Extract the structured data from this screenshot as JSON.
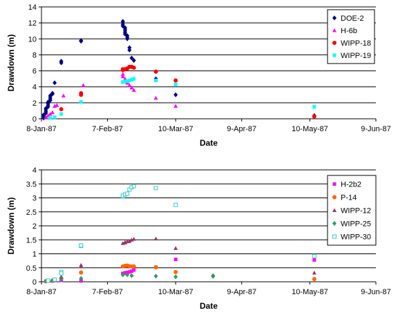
{
  "chart_data": [
    {
      "type": "scatter",
      "xlabel": "Date",
      "ylabel": "Drawdown (m)",
      "xlim": [
        "1987-01-08",
        "1987-06-09"
      ],
      "ylim": [
        0,
        14
      ],
      "yticks": [
        0,
        2,
        4,
        6,
        8,
        10,
        12,
        14
      ],
      "ytick_labels": [
        "0",
        "2",
        "4",
        "6",
        "8",
        "10",
        "12",
        "14"
      ],
      "xticks": [
        "1987-01-08",
        "1987-02-07",
        "1987-03-10",
        "1987-04-09",
        "1987-05-10",
        "1987-06-09"
      ],
      "xtick_labels": [
        "8-Jan-87",
        "7-Feb-87",
        "10-Mar-87",
        "9-Apr-87",
        "10-May-87",
        "9-Jun-87"
      ],
      "grid": "horizontal",
      "legend_position": "top-right",
      "series": [
        {
          "name": "DOE-2",
          "color": "#000080",
          "marker": "diamond",
          "points": [
            [
              "1987-01-09",
              0.1
            ],
            [
              "1987-01-09",
              0.3
            ],
            [
              "1987-01-09",
              0.5
            ],
            [
              "1987-01-10",
              0.7
            ],
            [
              "1987-01-10",
              0.9
            ],
            [
              "1987-01-10",
              1.1
            ],
            [
              "1987-01-10",
              1.3
            ],
            [
              "1987-01-11",
              1.5
            ],
            [
              "1987-01-11",
              1.7
            ],
            [
              "1987-01-11",
              1.9
            ],
            [
              "1987-01-11",
              2.1
            ],
            [
              "1987-01-12",
              2.3
            ],
            [
              "1987-01-12",
              2.5
            ],
            [
              "1987-01-12",
              2.7
            ],
            [
              "1987-01-12",
              2.9
            ],
            [
              "1987-01-13",
              3.1
            ],
            [
              "1987-01-13",
              3.2
            ],
            [
              "1987-01-14",
              4.5
            ],
            [
              "1987-01-17",
              7.0
            ],
            [
              "1987-01-17",
              7.2
            ],
            [
              "1987-01-26",
              9.7
            ],
            [
              "1987-01-26",
              9.8
            ],
            [
              "1987-02-14",
              12.2
            ],
            [
              "1987-02-14",
              12.0
            ],
            [
              "1987-02-14",
              11.8
            ],
            [
              "1987-02-14",
              11.6
            ],
            [
              "1987-02-15",
              11.4
            ],
            [
              "1987-02-15",
              11.2
            ],
            [
              "1987-02-15",
              11.0
            ],
            [
              "1987-02-15",
              10.8
            ],
            [
              "1987-02-15",
              10.6
            ],
            [
              "1987-02-16",
              10.4
            ],
            [
              "1987-02-16",
              10.2
            ],
            [
              "1987-02-16",
              10.0
            ],
            [
              "1987-02-17",
              8.9
            ],
            [
              "1987-02-17",
              8.6
            ],
            [
              "1987-02-18",
              7.6
            ],
            [
              "1987-02-19",
              7.3
            ],
            [
              "1987-03-01",
              5.0
            ],
            [
              "1987-03-10",
              3.0
            ],
            [
              "1987-05-12",
              0.4
            ]
          ]
        },
        {
          "name": "H-6b",
          "color": "#FF00FF",
          "marker": "triangle",
          "points": [
            [
              "1987-01-10",
              0.2
            ],
            [
              "1987-01-11",
              0.4
            ],
            [
              "1987-01-12",
              0.6
            ],
            [
              "1987-01-13",
              0.8
            ],
            [
              "1987-01-14",
              1.6
            ],
            [
              "1987-01-15",
              1.7
            ],
            [
              "1987-01-18",
              2.9
            ],
            [
              "1987-01-27",
              4.2
            ],
            [
              "1987-02-14",
              5.6
            ],
            [
              "1987-02-14",
              5.3
            ],
            [
              "1987-02-15",
              5.0
            ],
            [
              "1987-02-15",
              4.8
            ],
            [
              "1987-02-16",
              4.6
            ],
            [
              "1987-02-16",
              4.5
            ],
            [
              "1987-02-17",
              4.2
            ],
            [
              "1987-02-18",
              3.9
            ],
            [
              "1987-02-19",
              3.6
            ],
            [
              "1987-03-01",
              2.6
            ],
            [
              "1987-03-10",
              1.6
            ],
            [
              "1987-05-12",
              0.3
            ]
          ]
        },
        {
          "name": "WIPP-18",
          "color": "#FF0000",
          "marker": "circle",
          "points": [
            [
              "1987-01-17",
              1.2
            ],
            [
              "1987-01-26",
              3.2
            ],
            [
              "1987-01-26",
              3.0
            ],
            [
              "1987-02-14",
              6.1
            ],
            [
              "1987-02-14",
              6.2
            ],
            [
              "1987-02-15",
              6.2
            ],
            [
              "1987-02-16",
              6.3
            ],
            [
              "1987-02-17",
              6.5
            ],
            [
              "1987-02-18",
              6.5
            ],
            [
              "1987-02-19",
              6.4
            ],
            [
              "1987-03-01",
              5.9
            ],
            [
              "1987-03-10",
              4.8
            ],
            [
              "1987-05-12",
              0.3
            ]
          ]
        },
        {
          "name": "WIPP-19",
          "color": "#00FFFF",
          "marker": "square",
          "points": [
            [
              "1987-01-12",
              0.1
            ],
            [
              "1987-01-14",
              0.2
            ],
            [
              "1987-01-17",
              0.6
            ],
            [
              "1987-01-26",
              2.1
            ],
            [
              "1987-02-14",
              4.6
            ],
            [
              "1987-02-15",
              4.7
            ],
            [
              "1987-02-16",
              4.7
            ],
            [
              "1987-02-17",
              4.8
            ],
            [
              "1987-02-18",
              4.9
            ],
            [
              "1987-02-19",
              5.0
            ],
            [
              "1987-03-01",
              4.8
            ],
            [
              "1987-03-10",
              4.3
            ],
            [
              "1987-05-12",
              1.5
            ]
          ]
        }
      ]
    },
    {
      "type": "scatter",
      "xlabel": "Date",
      "ylabel": "Drawdown (m)",
      "xlim": [
        "1987-01-08",
        "1987-06-09"
      ],
      "ylim": [
        0,
        4
      ],
      "yticks": [
        0,
        0.5,
        1,
        1.5,
        2,
        2.5,
        3,
        3.5,
        4
      ],
      "ytick_labels": [
        "0",
        "0.5",
        "1",
        "1.5",
        "2",
        "2.5",
        "3",
        "3.5",
        "4"
      ],
      "xticks": [
        "1987-01-08",
        "1987-02-07",
        "1987-03-10",
        "1987-04-09",
        "1987-05-10",
        "1987-06-09"
      ],
      "xtick_labels": [
        "8-Jan-87",
        "7-Feb-87",
        "10-Mar-87",
        "9-Apr-87",
        "10-May-87",
        "9-Jun-87"
      ],
      "grid": "horizontal",
      "legend_position": "right",
      "series": [
        {
          "name": "H-2b2",
          "color": "#FF00FF",
          "marker": "square",
          "points": [
            [
              "1987-01-10",
              0.02
            ],
            [
              "1987-01-13",
              0.03
            ],
            [
              "1987-01-17",
              0.05
            ],
            [
              "1987-01-26",
              0.03
            ],
            [
              "1987-02-14",
              0.28
            ],
            [
              "1987-02-14",
              0.3
            ],
            [
              "1987-02-15",
              0.31
            ],
            [
              "1987-02-15",
              0.32
            ],
            [
              "1987-02-16",
              0.33
            ],
            [
              "1987-02-17",
              0.35
            ],
            [
              "1987-02-18",
              0.38
            ],
            [
              "1987-02-19",
              0.42
            ],
            [
              "1987-03-01",
              0.52
            ],
            [
              "1987-03-10",
              0.8
            ],
            [
              "1987-05-12",
              0.78
            ]
          ]
        },
        {
          "name": "P-14",
          "color": "#FF6600",
          "marker": "circle",
          "points": [
            [
              "1987-01-10",
              0.02
            ],
            [
              "1987-01-13",
              0.04
            ],
            [
              "1987-01-17",
              0.12
            ],
            [
              "1987-01-26",
              0.33
            ],
            [
              "1987-02-14",
              0.55
            ],
            [
              "1987-02-15",
              0.57
            ],
            [
              "1987-02-16",
              0.58
            ],
            [
              "1987-02-17",
              0.56
            ],
            [
              "1987-02-18",
              0.55
            ],
            [
              "1987-02-19",
              0.55
            ],
            [
              "1987-03-01",
              0.52
            ],
            [
              "1987-03-10",
              0.35
            ],
            [
              "1987-05-12",
              0.1
            ]
          ]
        },
        {
          "name": "WIPP-12",
          "color": "#993366",
          "marker": "triangle",
          "points": [
            [
              "1987-01-11",
              0.03
            ],
            [
              "1987-01-14",
              0.05
            ],
            [
              "1987-01-17",
              0.18
            ],
            [
              "1987-01-26",
              0.6
            ],
            [
              "1987-01-26",
              0.55
            ],
            [
              "1987-02-14",
              1.38
            ],
            [
              "1987-02-15",
              1.4
            ],
            [
              "1987-02-15",
              1.42
            ],
            [
              "1987-02-16",
              1.44
            ],
            [
              "1987-02-17",
              1.45
            ],
            [
              "1987-02-18",
              1.5
            ],
            [
              "1987-02-19",
              1.53
            ],
            [
              "1987-03-01",
              1.54
            ],
            [
              "1987-03-10",
              1.2
            ],
            [
              "1987-05-12",
              0.32
            ]
          ]
        },
        {
          "name": "WIPP-25",
          "color": "#339966",
          "marker": "diamond",
          "points": [
            [
              "1987-01-10",
              0.02
            ],
            [
              "1987-01-13",
              0.04
            ],
            [
              "1987-01-17",
              0.1
            ],
            [
              "1987-01-26",
              0.12
            ],
            [
              "1987-02-14",
              0.25
            ],
            [
              "1987-02-16",
              0.25
            ],
            [
              "1987-02-18",
              0.22
            ],
            [
              "1987-03-01",
              0.2
            ],
            [
              "1987-03-10",
              0.18
            ],
            [
              "1987-03-27",
              0.22
            ],
            [
              "1987-03-27",
              0.19
            ]
          ]
        },
        {
          "name": "WIPP-30",
          "color": "#33CCCC",
          "marker": "square-open",
          "points": [
            [
              "1987-01-11",
              0.04
            ],
            [
              "1987-01-14",
              0.08
            ],
            [
              "1987-01-17",
              0.35
            ],
            [
              "1987-01-17",
              0.3
            ],
            [
              "1987-01-26",
              1.28
            ],
            [
              "1987-01-26",
              1.3
            ],
            [
              "1987-02-14",
              3.05
            ],
            [
              "1987-02-14",
              3.08
            ],
            [
              "1987-02-15",
              3.12
            ],
            [
              "1987-02-16",
              3.15
            ],
            [
              "1987-02-17",
              3.3
            ],
            [
              "1987-02-18",
              3.38
            ],
            [
              "1987-02-19",
              3.42
            ],
            [
              "1987-03-01",
              3.35
            ],
            [
              "1987-03-10",
              2.75
            ],
            [
              "1987-05-12",
              0.92
            ]
          ]
        }
      ]
    }
  ]
}
